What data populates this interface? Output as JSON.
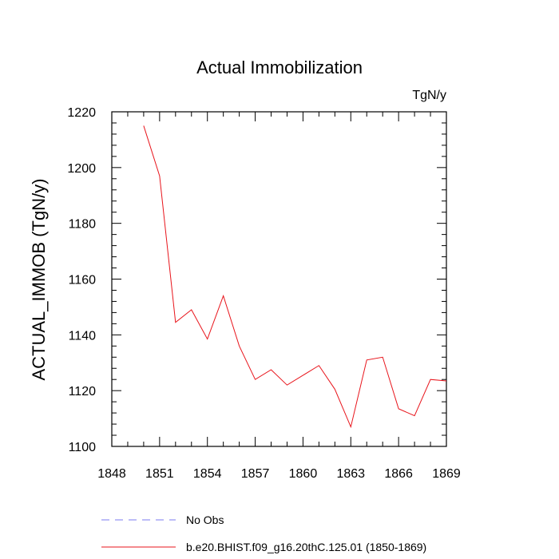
{
  "chart_data": {
    "type": "line",
    "title": "Actual Immobilization",
    "units_label": "TgN/y",
    "ylabel": "ACTUAL_IMMOB  (TgN/y)",
    "xlabel": "",
    "xlim": [
      1848,
      1869
    ],
    "ylim": [
      1100,
      1220
    ],
    "xticks": [
      1848,
      1851,
      1854,
      1857,
      1860,
      1863,
      1866,
      1869
    ],
    "yticks": [
      1100,
      1120,
      1140,
      1160,
      1180,
      1200,
      1220
    ],
    "series": [
      {
        "name": "b.e20.BHIST.f09_g16.20thC.125.01 (1850-1869)",
        "color": "#e8141b",
        "style": "solid",
        "x": [
          1850,
          1851,
          1852,
          1853,
          1854,
          1855,
          1856,
          1857,
          1858,
          1859,
          1860,
          1861,
          1862,
          1863,
          1864,
          1865,
          1866,
          1867,
          1868,
          1869
        ],
        "y": [
          1215,
          1197,
          1144.5,
          1149,
          1138.5,
          1154,
          1136,
          1124,
          1127.5,
          1122,
          1125.5,
          1129,
          1120.5,
          1107,
          1131,
          1132,
          1113.5,
          1111,
          1124,
          1123.5
        ]
      }
    ],
    "legend": [
      {
        "label": "No Obs",
        "color": "#7b7bf0",
        "style": "dashed"
      },
      {
        "label": "b.e20.BHIST.f09_g16.20thC.125.01 (1850-1869)",
        "color": "#e8141b",
        "style": "solid"
      }
    ]
  }
}
